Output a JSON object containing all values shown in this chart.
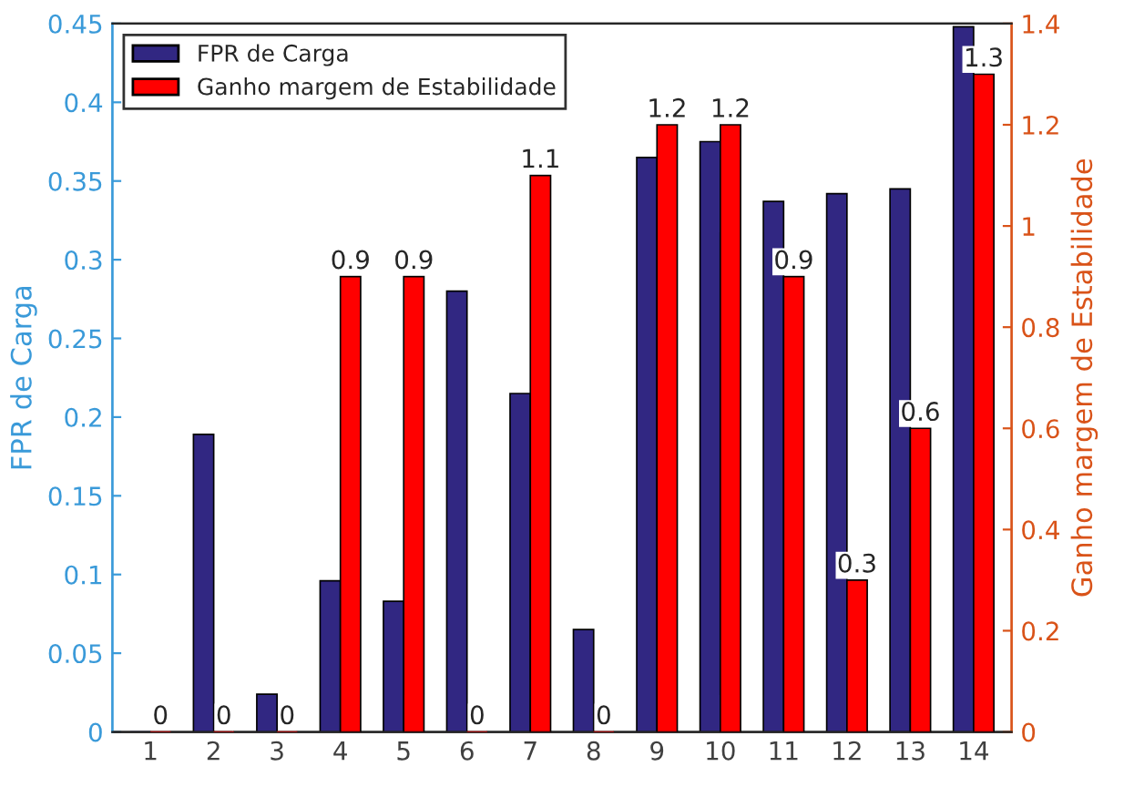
{
  "chart_data": {
    "type": "bar",
    "categories": [
      "1",
      "2",
      "3",
      "4",
      "5",
      "6",
      "7",
      "8",
      "9",
      "10",
      "11",
      "12",
      "13",
      "14"
    ],
    "series": [
      {
        "name": "FPR de Carga",
        "color": "#312782",
        "values": [
          0,
          0.189,
          0.024,
          0.096,
          0.083,
          0.28,
          0.215,
          0.065,
          0.365,
          0.375,
          0.337,
          0.342,
          0.345,
          0.448
        ]
      },
      {
        "name": "Ganho margem de Estabilidade",
        "color": "#ff0000",
        "axis": "y2",
        "values": [
          0,
          0,
          0,
          0.9,
          0.9,
          0,
          1.1,
          0,
          1.2,
          1.2,
          0.9,
          0.3,
          0.6,
          1.3
        ],
        "value_labels": [
          "0",
          "0",
          "0",
          "0.9",
          "0.9",
          "0",
          "1.1",
          "0",
          "1.2",
          "1.2",
          "0.9",
          "0.3",
          "0.6",
          "1.3"
        ]
      }
    ],
    "ylabel": "FPR de Carga",
    "y2label": "Ganho margem de Estabilidade",
    "ylim": [
      0,
      0.45
    ],
    "yticks": [
      0,
      0.05,
      0.1,
      0.15,
      0.2,
      0.25,
      0.3,
      0.35,
      0.4,
      0.45
    ],
    "y2lim": [
      0,
      1.4
    ],
    "y2ticks": [
      0,
      0.2,
      0.4,
      0.6,
      0.8,
      1,
      1.2,
      1.4
    ],
    "grid": false,
    "legend": "top left"
  }
}
